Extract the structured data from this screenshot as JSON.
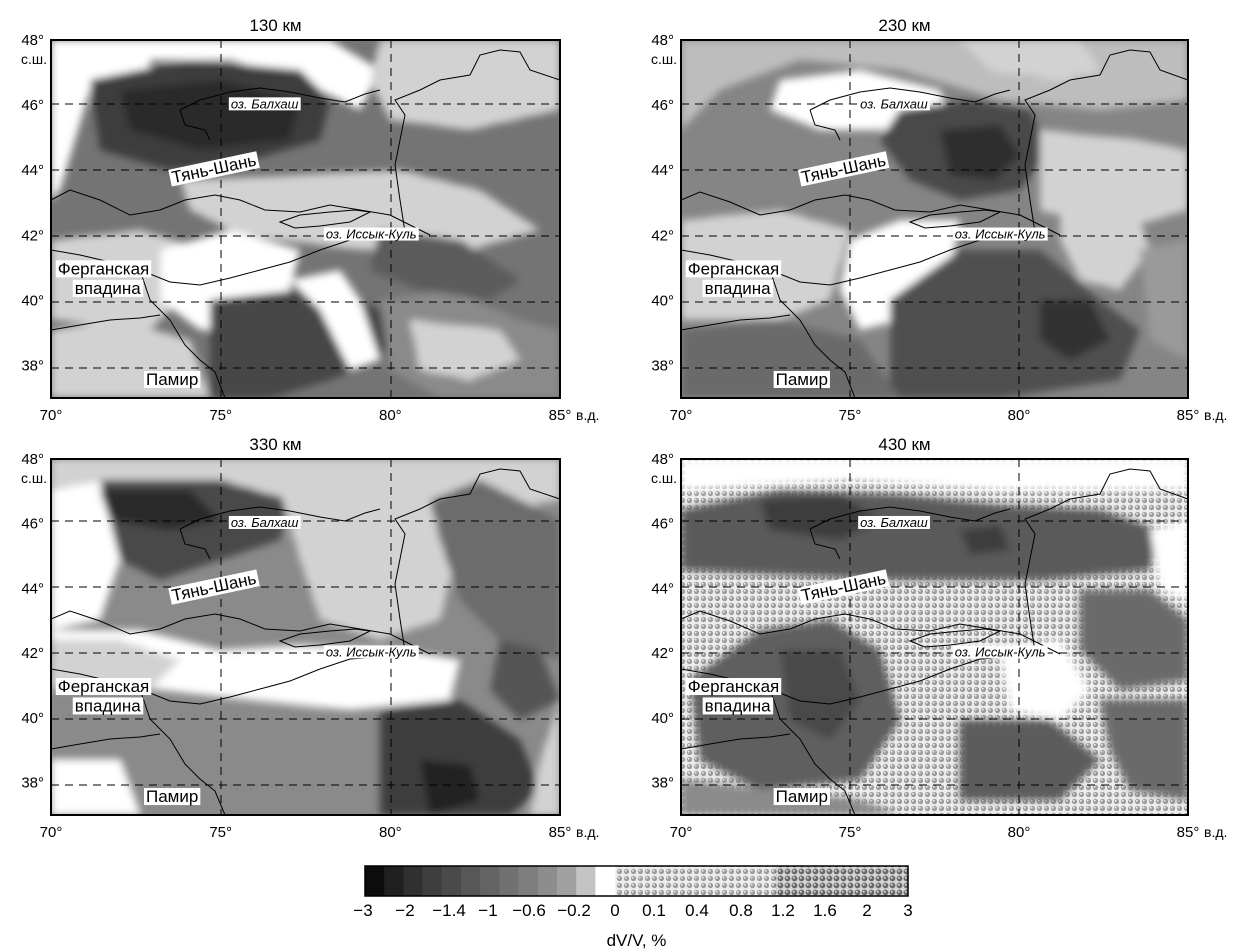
{
  "panels": [
    {
      "title": "130 км",
      "key": "p130"
    },
    {
      "title": "230 км",
      "key": "p230"
    },
    {
      "title": "330 км",
      "key": "p330"
    },
    {
      "title": "430 км",
      "key": "p430"
    }
  ],
  "axes": {
    "lat_ticks": [
      "48°",
      "46°",
      "44°",
      "42°",
      "40°",
      "38°"
    ],
    "lat_unit": "с.ш.",
    "lon_ticks": [
      "70°",
      "75°",
      "80°",
      "85°"
    ],
    "lon_unit": "в.д.",
    "lon_range": [
      70,
      85
    ],
    "lat_range": [
      37,
      48
    ]
  },
  "labels": {
    "balkhash": "оз. Балхаш",
    "tienshan": "Тянь-Шань",
    "issykkul": "оз. Иссык-Куль",
    "fergana_1": "Ферганская",
    "fergana_2": "впадина",
    "pamir": "Памир"
  },
  "colorbar": {
    "tick_labels": [
      "−3",
      "−2",
      "−1.4",
      "−1",
      "−0.6",
      "−0.2",
      "0",
      "0.1",
      "0.4",
      "0.8",
      "1.2",
      "1.6",
      "2",
      "3"
    ],
    "title": "dV/V, %"
  },
  "colors": {
    "darkest": "#111111",
    "negative_mid": "#6e6e6e",
    "zero": "#ffffff",
    "hatch": "#a0a0a0"
  }
}
